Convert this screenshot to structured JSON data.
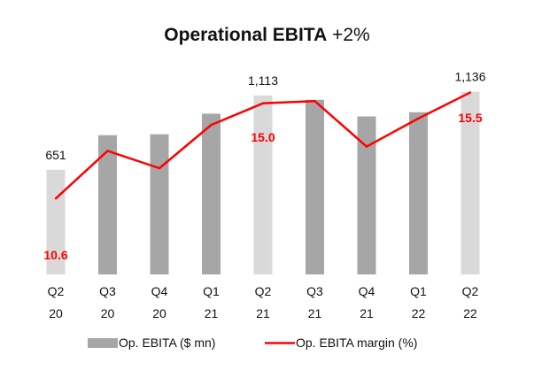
{
  "chart_data": {
    "type": "bar",
    "title": "Operational EBITA",
    "title_change": "+2%",
    "categories": [
      [
        "Q2",
        "20"
      ],
      [
        "Q3",
        "20"
      ],
      [
        "Q4",
        "20"
      ],
      [
        "Q1",
        "21"
      ],
      [
        "Q2",
        "21"
      ],
      [
        "Q3",
        "21"
      ],
      [
        "Q4",
        "21"
      ],
      [
        "Q1",
        "22"
      ],
      [
        "Q2",
        "22"
      ]
    ],
    "series": [
      {
        "name": "Op. EBITA ($ mn)",
        "kind": "bar",
        "values": [
          651,
          866,
          872,
          1000,
          1113,
          1086,
          983,
          1009,
          1136
        ],
        "highlight": [
          true,
          false,
          false,
          false,
          true,
          false,
          false,
          false,
          true
        ],
        "color": "#a6a6a6",
        "highlight_color": "#d9d9d9",
        "data_labels": [
          "651",
          "",
          "",
          "",
          "1,113",
          "",
          "",
          "",
          "1,136"
        ]
      },
      {
        "name": "Op. EBITA margin (%)",
        "kind": "line",
        "values": [
          10.6,
          12.8,
          12.0,
          14.0,
          15.0,
          15.1,
          13.0,
          14.3,
          15.5
        ],
        "color": "#ff0000",
        "data_labels": [
          "10.6",
          "",
          "",
          "",
          "15.0",
          "",
          "",
          "",
          "15.5"
        ]
      }
    ],
    "legend_position": "bottom",
    "grid": false,
    "ylim_bars": [
      0,
      1250
    ],
    "ylim_line": [
      7.5,
      16.5
    ]
  }
}
